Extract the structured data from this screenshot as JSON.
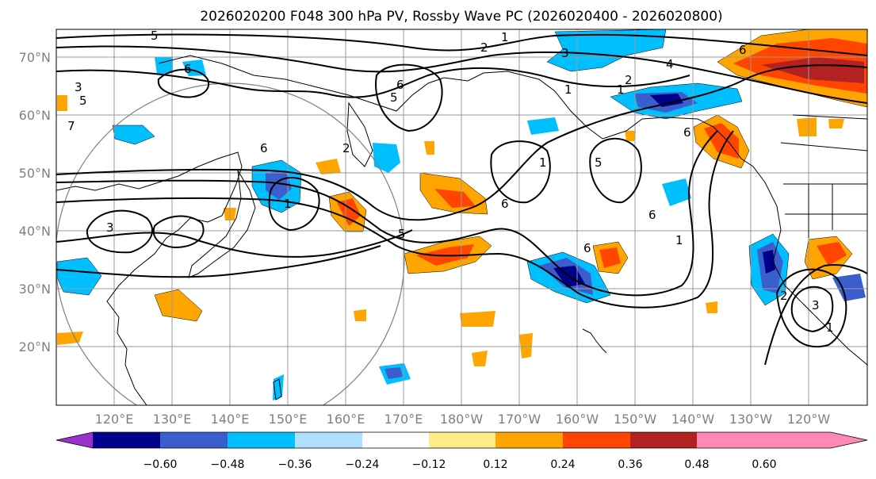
{
  "title": "2026020200 F048 300 hPa PV, Rossby Wave PC (2026020400 - 2026020800)",
  "latitude_labels": [
    "70°N",
    "60°N",
    "50°N",
    "40°N",
    "30°N",
    "20°N"
  ],
  "longitude_labels": [
    "120°E",
    "130°E",
    "140°E",
    "150°E",
    "160°E",
    "170°E",
    "180°W",
    "170°W",
    "160°W",
    "150°W",
    "140°W",
    "130°W",
    "120°W"
  ],
  "colorbar": {
    "ticks": [
      "−0.60",
      "−0.48",
      "−0.36",
      "−0.24",
      "−0.12",
      "0.12",
      "0.24",
      "0.36",
      "0.48",
      "0.60"
    ],
    "colors": [
      "#9932cc",
      "#00008b",
      "#3a5fcd",
      "#00bfff",
      "#b0e0ff",
      "#ffffff",
      "#ffeb88",
      "#ffa500",
      "#ff4500",
      "#b22222",
      "#ff88b4"
    ]
  },
  "contour_labels": [
    "1",
    "2",
    "3",
    "4",
    "2",
    "1",
    "6",
    "5",
    "6",
    "5",
    "6",
    "7",
    "1",
    "6",
    "5",
    "6",
    "1",
    "5",
    "3",
    "2",
    "1",
    "3",
    "1",
    "6",
    "1",
    "2",
    "3",
    "5",
    "6",
    "6"
  ]
}
